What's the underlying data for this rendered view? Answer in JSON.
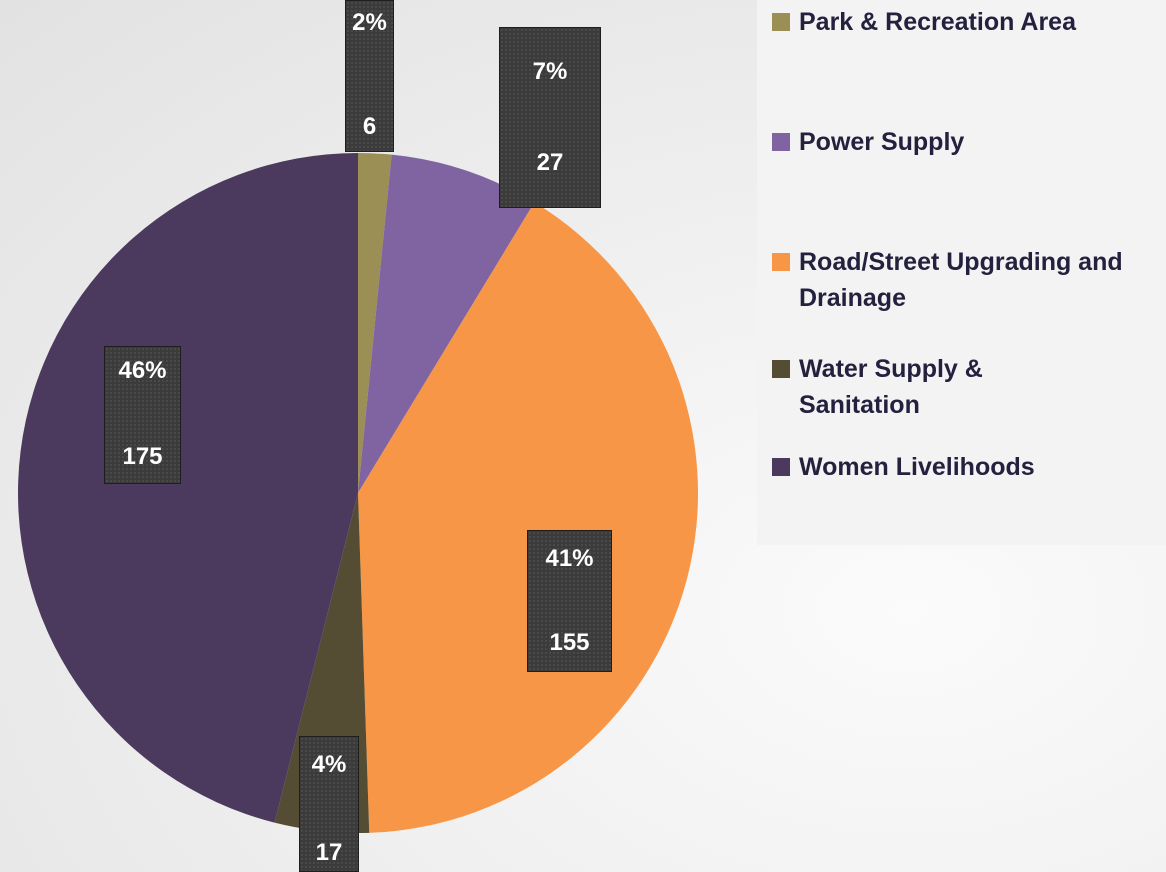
{
  "chart_data": {
    "type": "pie",
    "title": "",
    "legend_position": "right",
    "slices": [
      {
        "name": "Park & Recreation Area",
        "value": 6,
        "percent": "2%",
        "color": "#9b8f55"
      },
      {
        "name": "Power Supply",
        "value": 27,
        "percent": "7%",
        "color": "#8064a2"
      },
      {
        "name": "Road/Street Upgrading and Drainage",
        "value": 155,
        "percent": "41%",
        "color": "#f79646"
      },
      {
        "name": "Water Supply & Sanitation",
        "value": 17,
        "percent": "4%",
        "color": "#544d33"
      },
      {
        "name": "Women Livelihoods",
        "value": 175,
        "percent": "46%",
        "color": "#4b3a5e"
      }
    ]
  }
}
